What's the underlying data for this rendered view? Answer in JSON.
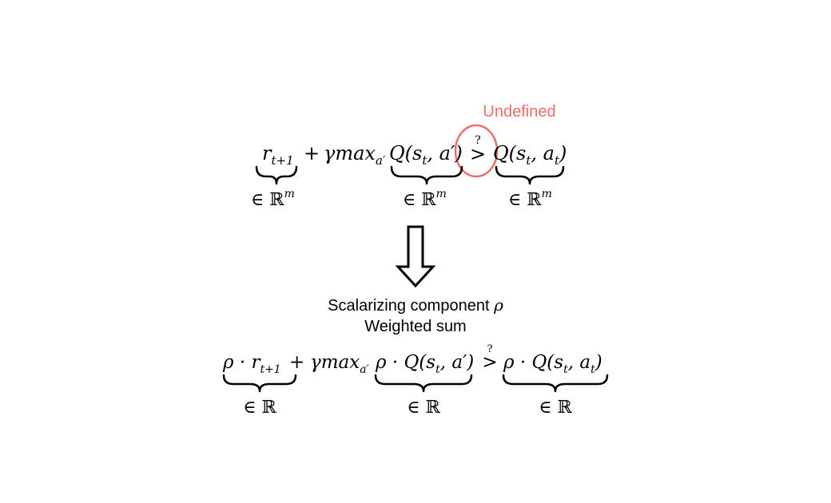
{
  "colors": {
    "annotation": "#f26b6b",
    "ink": "#000000"
  },
  "top": {
    "label_undefined": "Undefined",
    "question_mark": "?",
    "comparator": ">",
    "reward_term": {
      "base": "r",
      "sub": "t+1"
    },
    "plus": "+",
    "gamma_max": "γmax",
    "max_sub": "a′",
    "q_next": {
      "prefix": "Q(s",
      "sub": "t",
      "suffix": ", a′)"
    },
    "q_current": {
      "prefix": "Q(s",
      "sub": "t",
      "mid": ", a",
      "sub2": "t",
      "suffix": ")"
    },
    "brace_labels": [
      {
        "set": "∈ ℝ",
        "sup": "m"
      },
      {
        "set": "∈ ℝ",
        "sup": "m"
      },
      {
        "set": "∈ ℝ",
        "sup": "m"
      }
    ]
  },
  "transition": {
    "line1_text": "Scalarizing component ",
    "line1_symbol": "ρ",
    "line2": "Weighted sum"
  },
  "bottom": {
    "question_mark": "?",
    "comparator": ">",
    "reward_term": {
      "prefix": "ρ · r",
      "sub": "t+1"
    },
    "plus": "+",
    "gamma_max": "γmax",
    "max_sub": "a′",
    "q_next": {
      "prefix": "ρ · Q(s",
      "sub": "t",
      "suffix": ", a′)"
    },
    "q_current": {
      "prefix": "ρ · Q(s",
      "sub": "t",
      "mid": ", a",
      "sub2": "t",
      "suffix": ")"
    },
    "brace_labels": [
      "∈ ℝ",
      "∈ ℝ",
      "∈ ℝ"
    ]
  }
}
